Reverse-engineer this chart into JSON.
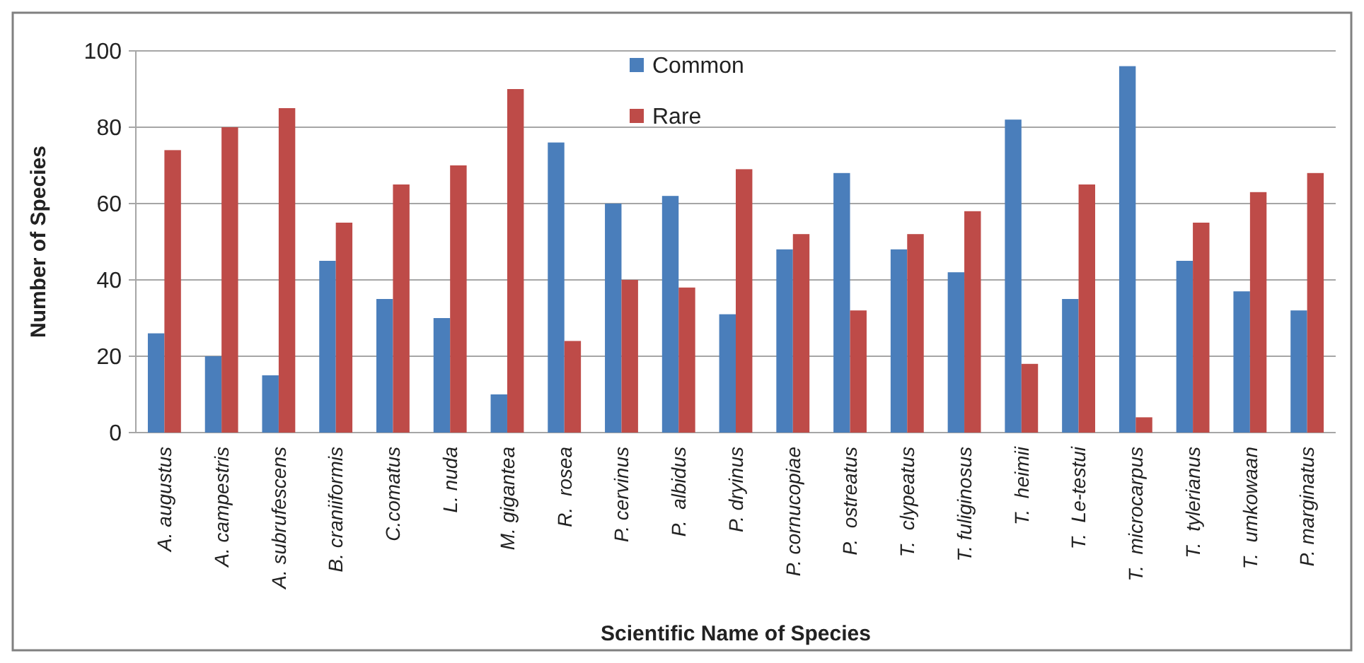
{
  "chart_data": {
    "type": "bar",
    "xlabel": "Scientific Name of Species",
    "ylabel": "Number of Species",
    "categories": [
      "A. augustus",
      "A. campestris",
      "A. subrufescens",
      "B. craniiformis",
      "C.comatus",
      "L. nuda",
      "M. gigantea",
      "R.  rosea",
      "P. cervinus",
      "P.  albidus",
      "P. dryinus",
      "P. cornucopiae",
      "P.  ostreatus",
      "T.  clypeatus",
      "T. fuliginosus",
      "T.  heimii",
      "T.  Le-testui",
      "T.  microcarpus",
      "T.  tylerianus",
      "T.  umkowaan",
      "P. marginatus"
    ],
    "series": [
      {
        "name": "Common",
        "color": "#4a7ebb",
        "values": [
          26,
          20,
          15,
          45,
          35,
          30,
          10,
          76,
          60,
          62,
          31,
          48,
          68,
          48,
          42,
          82,
          35,
          96,
          45,
          37,
          32
        ]
      },
      {
        "name": "Rare",
        "color": "#be4b48",
        "values": [
          74,
          80,
          85,
          55,
          65,
          70,
          90,
          24,
          40,
          38,
          69,
          52,
          32,
          52,
          58,
          18,
          65,
          4,
          55,
          63,
          68
        ]
      }
    ],
    "ylim": [
      0,
      100
    ],
    "yticks": [
      0,
      20,
      40,
      60,
      80,
      100
    ],
    "grid": "y",
    "legend": "top"
  }
}
